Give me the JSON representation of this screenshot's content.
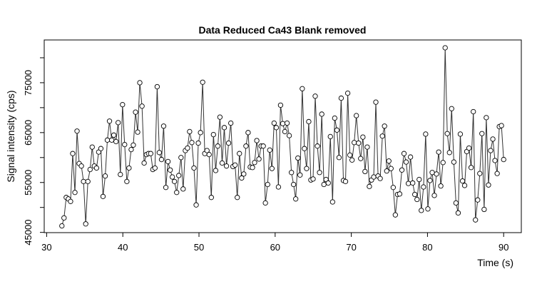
{
  "chart_data": {
    "type": "line",
    "marker": "circle",
    "title": "Data Reduced Ca43 Blank removed",
    "xlabel": "Time (s)",
    "ylabel": "Signal intensity (cps)",
    "color": "#333333",
    "xlim": [
      29.68,
      92.32
    ],
    "xticks": [
      30,
      40,
      50,
      60,
      70,
      80,
      90
    ],
    "ylim": [
      44950,
      83570
    ],
    "yticks": [
      45000,
      55000,
      65000,
      75000
    ],
    "yticks_unlabeled": [
      50000,
      60000,
      70000,
      80000
    ],
    "x": [
      32.0,
      32.28,
      32.57,
      32.85,
      33.14,
      33.42,
      33.71,
      33.99,
      34.27,
      34.56,
      34.84,
      35.13,
      35.41,
      35.7,
      35.98,
      36.26,
      36.55,
      36.83,
      37.12,
      37.4,
      37.69,
      37.97,
      38.25,
      38.54,
      38.82,
      39.11,
      39.39,
      39.68,
      39.96,
      40.24,
      40.53,
      40.81,
      41.1,
      41.38,
      41.67,
      41.95,
      42.23,
      42.52,
      42.8,
      43.09,
      43.37,
      43.66,
      43.94,
      44.22,
      44.51,
      44.79,
      45.08,
      45.36,
      45.65,
      45.93,
      46.22,
      46.5,
      46.78,
      47.07,
      47.35,
      47.64,
      47.92,
      48.21,
      48.49,
      48.77,
      49.06,
      49.34,
      49.63,
      49.91,
      50.2,
      50.48,
      50.76,
      51.05,
      51.33,
      51.62,
      51.9,
      52.19,
      52.47,
      52.75,
      53.04,
      53.32,
      53.61,
      53.89,
      54.18,
      54.46,
      54.74,
      55.03,
      55.31,
      55.6,
      55.88,
      56.17,
      56.45,
      56.73,
      57.02,
      57.3,
      57.59,
      57.87,
      58.16,
      58.44,
      58.72,
      59.01,
      59.29,
      59.58,
      59.86,
      60.15,
      60.43,
      60.71,
      61.0,
      61.28,
      61.57,
      61.85,
      62.14,
      62.42,
      62.7,
      62.99,
      63.27,
      63.56,
      63.84,
      64.13,
      64.41,
      64.69,
      64.98,
      65.26,
      65.55,
      65.83,
      66.12,
      66.4,
      66.68,
      66.97,
      67.25,
      67.54,
      67.82,
      68.11,
      68.39,
      68.67,
      68.96,
      69.24,
      69.53,
      69.81,
      70.1,
      70.38,
      70.66,
      70.95,
      71.23,
      71.52,
      71.8,
      72.09,
      72.37,
      72.65,
      72.94,
      73.22,
      73.51,
      73.79,
      74.08,
      74.36,
      74.65,
      74.93,
      75.21,
      75.5,
      75.78,
      76.07,
      76.35,
      76.64,
      76.92,
      77.2,
      77.49,
      77.77,
      78.06,
      78.34,
      78.63,
      78.91,
      79.19,
      79.48,
      79.76,
      80.05,
      80.33,
      80.62,
      80.9,
      81.18,
      81.47,
      81.75,
      82.04,
      82.32,
      82.6,
      82.89,
      83.17,
      83.46,
      83.74,
      84.03,
      84.31,
      84.6,
      84.88,
      85.16,
      85.45,
      85.73,
      86.02,
      86.3,
      86.59,
      86.87,
      87.15,
      87.44,
      87.72,
      88.01,
      88.29,
      88.58,
      88.86,
      89.15,
      89.43,
      89.71,
      90.0
    ],
    "values": [
      46300,
      47900,
      52000,
      51700,
      51200,
      60800,
      53000,
      65300,
      58800,
      58300,
      55200,
      46700,
      55200,
      57600,
      62100,
      58300,
      57900,
      61100,
      61800,
      52200,
      56300,
      63500,
      67300,
      63500,
      64500,
      63200,
      67000,
      56600,
      70600,
      62600,
      55200,
      57900,
      61600,
      62500,
      69100,
      65100,
      75000,
      70300,
      58900,
      60600,
      60800,
      60800,
      57600,
      57900,
      74200,
      61000,
      59600,
      66300,
      54000,
      59200,
      57500,
      56100,
      55200,
      53000,
      56400,
      60000,
      53700,
      61400,
      61900,
      65200,
      63000,
      57900,
      50500,
      62900,
      65000,
      75100,
      60800,
      61400,
      60600,
      52000,
      64600,
      57400,
      62300,
      68100,
      58900,
      66000,
      58300,
      62900,
      66900,
      58200,
      58500,
      52000,
      60800,
      55900,
      56700,
      62300,
      65000,
      58100,
      58000,
      59000,
      63400,
      59700,
      62300,
      62300,
      50900,
      54600,
      61500,
      57800,
      66900,
      66000,
      54100,
      70500,
      66800,
      65200,
      66900,
      64400,
      57000,
      54600,
      51700,
      59900,
      56500,
      73800,
      61800,
      57800,
      67200,
      55500,
      55700,
      72300,
      62300,
      57000,
      68700,
      54600,
      55600,
      54900,
      64200,
      51100,
      67900,
      65500,
      60000,
      71900,
      55400,
      55200,
      72900,
      60500,
      59500,
      63000,
      68400,
      62900,
      59800,
      64100,
      57200,
      62100,
      54200,
      55500,
      56100,
      71100,
      56300,
      55800,
      64300,
      66300,
      57300,
      59300,
      57800,
      54000,
      48500,
      52600,
      52700,
      57500,
      60800,
      59100,
      54800,
      60100,
      54900,
      52600,
      51600,
      55600,
      49400,
      54100,
      64700,
      49700,
      55400,
      57000,
      52400,
      56700,
      61100,
      54300,
      59000,
      82000,
      64800,
      61000,
      69800,
      59100,
      50900,
      48900,
      64700,
      55300,
      54400,
      61200,
      61900,
      58000,
      69200,
      47500,
      51500,
      56800,
      64800,
      49600,
      68000,
      54500,
      61400,
      63700,
      59400,
      56800,
      66200,
      66400,
      59600
    ]
  }
}
